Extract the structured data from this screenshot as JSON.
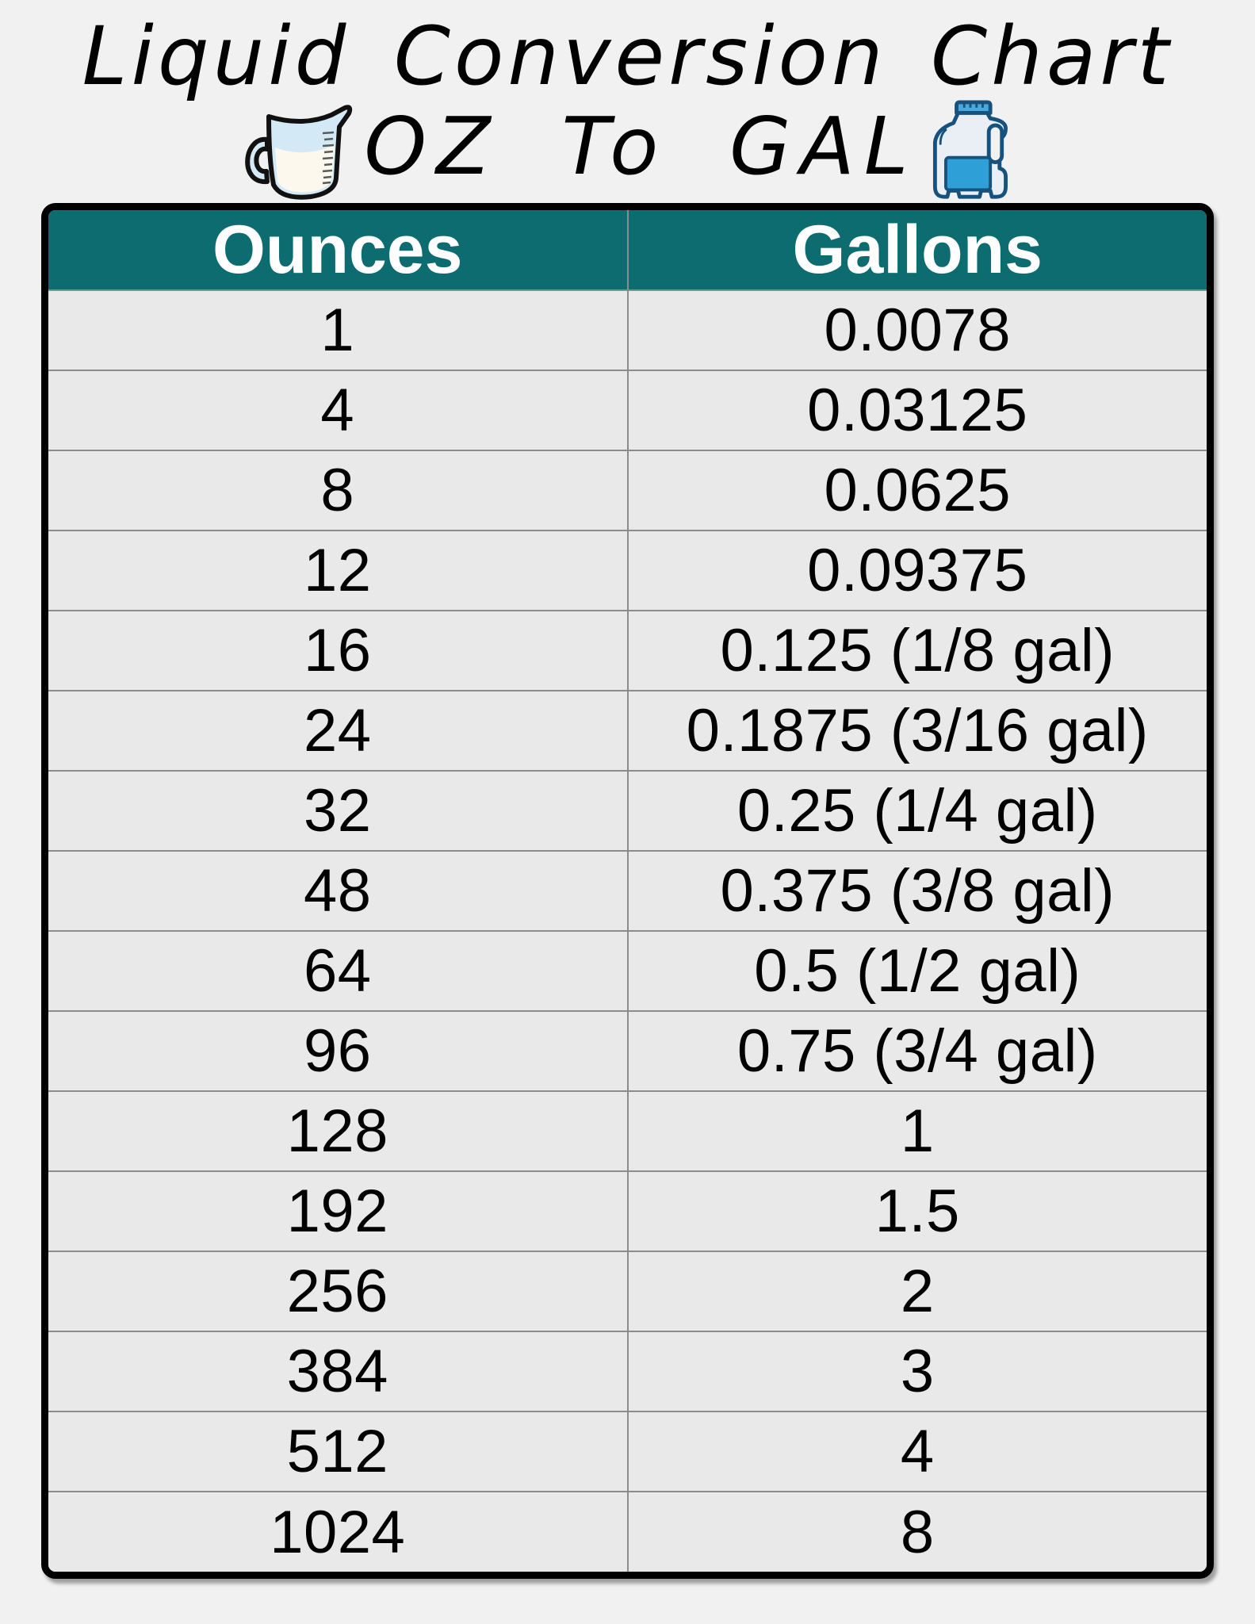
{
  "header": {
    "title": "Liquid Conversion Chart",
    "subtitle": "OZ To GAL"
  },
  "icons": {
    "left": "measuring-cup-icon",
    "right": "gallon-jug-icon"
  },
  "colors": {
    "page_background": "#f1f1f1",
    "table_header_background": "#0d6c70",
    "table_header_text": "#ffffff",
    "row_background": "#e9e9e9",
    "grid_line": "#8c8c8c",
    "table_border": "#000000",
    "jug_blue": "#2f9fd8",
    "cup_liquid": "#fdf8ee",
    "cup_glass": "#d3eaf6"
  },
  "table": {
    "columns": [
      "Ounces",
      "Gallons"
    ],
    "rows": [
      [
        "1",
        "0.0078"
      ],
      [
        "4",
        "0.03125"
      ],
      [
        "8",
        "0.0625"
      ],
      [
        "12",
        "0.09375"
      ],
      [
        "16",
        "0.125 (1/8 gal)"
      ],
      [
        "24",
        "0.1875 (3/16 gal)"
      ],
      [
        "32",
        "0.25 (1/4 gal)"
      ],
      [
        "48",
        "0.375 (3/8 gal)"
      ],
      [
        "64",
        "0.5 (1/2 gal)"
      ],
      [
        "96",
        "0.75 (3/4 gal)"
      ],
      [
        "128",
        "1"
      ],
      [
        "192",
        "1.5"
      ],
      [
        "256",
        "2"
      ],
      [
        "384",
        "3"
      ],
      [
        "512",
        "4"
      ],
      [
        "1024",
        "8"
      ]
    ]
  },
  "chart_data": {
    "type": "table",
    "title": "Liquid Conversion Chart OZ To GAL",
    "columns": [
      "Ounces",
      "Gallons"
    ],
    "rows": [
      [
        1,
        "0.0078"
      ],
      [
        4,
        "0.03125"
      ],
      [
        8,
        "0.0625"
      ],
      [
        12,
        "0.09375"
      ],
      [
        16,
        "0.125 (1/8 gal)"
      ],
      [
        24,
        "0.1875 (3/16 gal)"
      ],
      [
        32,
        "0.25 (1/4 gal)"
      ],
      [
        48,
        "0.375 (3/8 gal)"
      ],
      [
        64,
        "0.5 (1/2 gal)"
      ],
      [
        96,
        "0.75 (3/4 gal)"
      ],
      [
        128,
        "1"
      ],
      [
        192,
        "1.5"
      ],
      [
        256,
        "2"
      ],
      [
        384,
        "3"
      ],
      [
        512,
        "4"
      ],
      [
        1024,
        "8"
      ]
    ]
  }
}
